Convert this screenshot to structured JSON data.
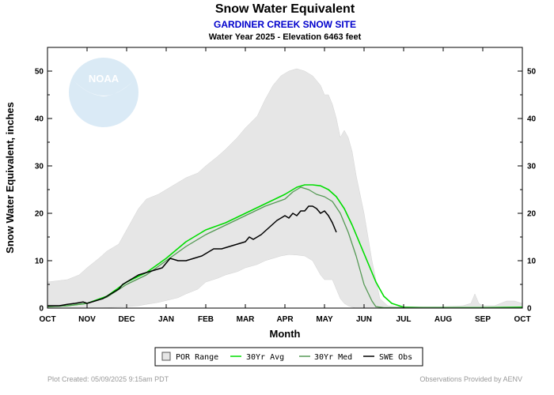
{
  "page": {
    "title": "Snow Water Equivalent",
    "subtitle": "GARDINER CREEK SNOW SITE",
    "info": "Water Year 2025 -  Elevation 6463 feet",
    "footer_left": "Plot Created: 05/09/2025 9:15am PDT",
    "footer_right": "Observations Provided by AENV",
    "logo_text": "NOAA"
  },
  "colors": {
    "por_fill": "#e6e6e6",
    "avg": "#00dd00",
    "med": "#559955",
    "obs": "#000000"
  },
  "chart_data": {
    "type": "line",
    "title": "Snow Water Equivalent",
    "subtitle": "GARDINER CREEK SNOW SITE",
    "xlabel": "Month",
    "ylabel": "Snow Water Equivalent, inches",
    "x_ticks": [
      "OCT",
      "NOV",
      "DEC",
      "JAN",
      "FEB",
      "MAR",
      "APR",
      "MAY",
      "JUN",
      "JUL",
      "AUG",
      "SEP",
      "OCT"
    ],
    "y_ticks": [
      0,
      10,
      20,
      30,
      40,
      50
    ],
    "xlim": [
      0,
      12
    ],
    "ylim": [
      0,
      55
    ],
    "grid": false,
    "legend_position": "bottom-center",
    "legend": [
      "POR Range",
      "30Yr Avg",
      "30Yr Med",
      "SWE Obs"
    ],
    "por_range": {
      "x": [
        0,
        0.3,
        0.5,
        0.8,
        1.0,
        1.3,
        1.5,
        1.8,
        2.0,
        2.3,
        2.5,
        2.8,
        3.0,
        3.3,
        3.5,
        3.8,
        4.0,
        4.3,
        4.5,
        4.8,
        5.0,
        5.3,
        5.5,
        5.7,
        5.9,
        6.1,
        6.3,
        6.5,
        6.7,
        6.9,
        7.0,
        7.1,
        7.2,
        7.3,
        7.4,
        7.5,
        7.6,
        7.7,
        7.8,
        8.0,
        8.2,
        8.4,
        8.6,
        8.8,
        9.0,
        9.2,
        9.5,
        10.0,
        10.5,
        10.7,
        10.8,
        10.9,
        11.0,
        11.3,
        11.6,
        11.8,
        12.0
      ],
      "max": [
        5.5,
        5.8,
        6.0,
        7.0,
        8.5,
        10.5,
        12.0,
        13.5,
        16.5,
        21.0,
        23.0,
        24.0,
        25.0,
        26.5,
        27.5,
        28.5,
        30.0,
        32.0,
        33.5,
        36.0,
        38.0,
        40.5,
        44.0,
        47.0,
        49.0,
        50.0,
        50.5,
        50.0,
        49.0,
        47.0,
        45.0,
        45.0,
        43.0,
        40.0,
        36.0,
        37.5,
        36.0,
        33.0,
        28.0,
        20.0,
        10.0,
        2.0,
        0.5,
        0.3,
        0.3,
        0.3,
        0.3,
        0.3,
        0.5,
        1.0,
        3.0,
        1.0,
        0.5,
        0.5,
        1.5,
        1.5,
        1.0
      ],
      "min": [
        0,
        0,
        0,
        0,
        0,
        0,
        0.1,
        0.2,
        0.3,
        0.5,
        0.8,
        1.2,
        1.6,
        2.2,
        3.0,
        4.0,
        5.5,
        6.3,
        7.0,
        7.7,
        8.5,
        9.2,
        10.0,
        10.5,
        11.0,
        11.3,
        11.2,
        11.0,
        10.0,
        7.0,
        6.0,
        6.0,
        6.0,
        4.0,
        2.0,
        1.0,
        0.5,
        0.2,
        0,
        0,
        0,
        0,
        0,
        0,
        0,
        0,
        0,
        0,
        0,
        0,
        0,
        0,
        0,
        0,
        0,
        0,
        0
      ]
    },
    "series": [
      {
        "name": "30Yr Avg",
        "x": [
          0,
          0.5,
          1.0,
          1.5,
          2.0,
          2.5,
          3.0,
          3.5,
          4.0,
          4.5,
          5.0,
          5.5,
          6.0,
          6.3,
          6.5,
          6.7,
          6.9,
          7.1,
          7.3,
          7.5,
          7.7,
          7.9,
          8.1,
          8.3,
          8.5,
          8.7,
          9.0,
          9.5,
          10.0,
          11.0,
          12.0
        ],
        "y": [
          0.3,
          0.5,
          1.0,
          2.5,
          5.5,
          7.5,
          10.5,
          14.0,
          16.5,
          18.0,
          20.0,
          22.0,
          24.0,
          25.5,
          26.0,
          26.0,
          25.8,
          25.0,
          23.5,
          21.0,
          17.5,
          13.5,
          9.5,
          5.5,
          2.5,
          1.0,
          0.2,
          0.1,
          0.1,
          0.1,
          0.2
        ]
      },
      {
        "name": "30Yr Med",
        "x": [
          0,
          0.5,
          1.0,
          1.5,
          2.0,
          2.5,
          3.0,
          3.5,
          4.0,
          4.5,
          5.0,
          5.5,
          6.0,
          6.2,
          6.4,
          6.6,
          6.8,
          7.0,
          7.2,
          7.4,
          7.6,
          7.8,
          8.0,
          8.2,
          8.3,
          8.5,
          9.0,
          10.0,
          11.0,
          12.0
        ],
        "y": [
          0.3,
          0.5,
          1.0,
          2.3,
          5.0,
          7.0,
          10.0,
          13.0,
          15.5,
          17.5,
          19.5,
          21.5,
          23.0,
          24.5,
          25.5,
          25.0,
          24.0,
          23.5,
          22.5,
          20.0,
          16.0,
          11.0,
          5.0,
          1.5,
          0.3,
          0.1,
          0.1,
          0.1,
          0.1,
          0.1
        ]
      },
      {
        "name": "SWE Obs",
        "x": [
          0,
          0.3,
          0.5,
          0.7,
          0.9,
          1.0,
          1.2,
          1.4,
          1.6,
          1.8,
          1.9,
          2.0,
          2.1,
          2.3,
          2.5,
          2.7,
          2.9,
          3.0,
          3.1,
          3.3,
          3.5,
          3.7,
          3.9,
          4.0,
          4.2,
          4.4,
          4.6,
          4.8,
          5.0,
          5.1,
          5.2,
          5.4,
          5.6,
          5.8,
          5.9,
          6.0,
          6.1,
          6.2,
          6.3,
          6.4,
          6.5,
          6.6,
          6.7,
          6.8,
          6.9,
          7.0,
          7.1,
          7.2,
          7.3
        ],
        "y": [
          0.5,
          0.5,
          0.8,
          1.0,
          1.3,
          1.0,
          1.5,
          2.0,
          3.0,
          4.0,
          5.0,
          5.5,
          6.0,
          7.0,
          7.5,
          8.0,
          8.5,
          9.5,
          10.5,
          10.0,
          10.0,
          10.5,
          11.0,
          11.5,
          12.5,
          12.5,
          13.0,
          13.5,
          14.0,
          15.0,
          14.5,
          15.5,
          17.0,
          18.5,
          19.0,
          19.5,
          19.0,
          20.0,
          19.5,
          20.5,
          20.5,
          21.5,
          21.5,
          21.0,
          20.0,
          20.5,
          19.5,
          18.0,
          16.0
        ]
      }
    ]
  }
}
